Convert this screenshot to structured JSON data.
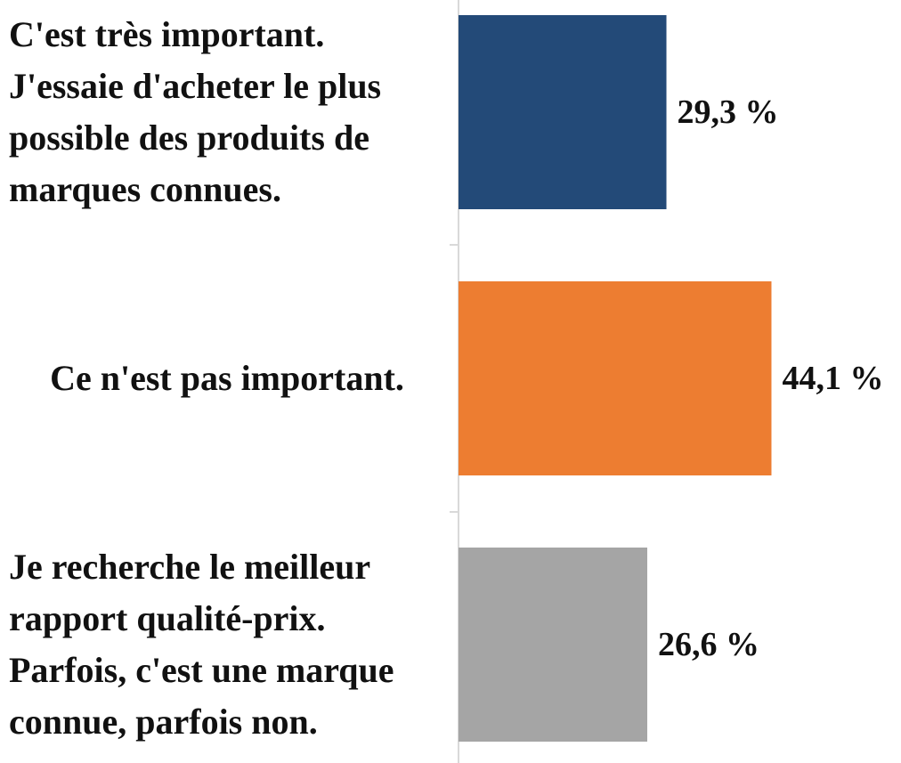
{
  "chart_data": {
    "type": "barh",
    "categories": [
      "C'est très important. J'essaie d'acheter le plus possible des produits de marques connues.",
      "Ce n'est pas important.",
      "Je recherche le meilleur rapport qualité-prix. Parfois, c'est une marque connue, parfois non."
    ],
    "values": [
      29.3,
      44.1,
      26.6
    ],
    "value_labels": [
      "29,3 %",
      "44,1 %",
      "26,6 %"
    ],
    "colors": [
      "#234a78",
      "#ed7d31",
      "#a5a5a5"
    ]
  }
}
